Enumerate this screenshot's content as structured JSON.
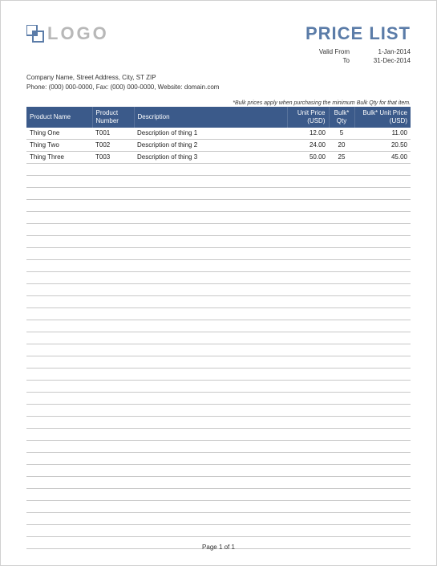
{
  "logo": {
    "text": "LOGO",
    "icon_color": "#5b7ca8",
    "text_color": "#b8b8b8"
  },
  "title": {
    "text": "PRICE LIST",
    "color": "#5b7ca8"
  },
  "validity": {
    "from_label": "Valid From",
    "from_value": "1-Jan-2014",
    "to_label": "To",
    "to_value": "31-Dec-2014"
  },
  "company": {
    "line1": "Company Name, Street Address, City, ST  ZIP",
    "line2": "Phone: (000) 000-0000, Fax: (000) 000-0000, Website: domain.com"
  },
  "footnote": "*Bulk prices apply when purchasing the minimum Bulk Qty for that item.",
  "table": {
    "header_bg": "#3b5a8a",
    "header_fg": "#ffffff",
    "border_color": "#c8c8c8",
    "columns": [
      {
        "label": "Product Name",
        "align": "left",
        "key": "name"
      },
      {
        "label": "Product Number",
        "align": "left",
        "key": "pnum"
      },
      {
        "label": "Description",
        "align": "left",
        "key": "desc"
      },
      {
        "label": "Unit Price (USD)",
        "align": "right",
        "key": "uprice"
      },
      {
        "label": "Bulk* Qty",
        "align": "center",
        "key": "bqty"
      },
      {
        "label": "Bulk* Unit Price (USD)",
        "align": "right",
        "key": "bprice"
      }
    ],
    "rows": [
      {
        "name": "Thing One",
        "pnum": "T001",
        "desc": "Description of thing 1",
        "uprice": "12.00",
        "bqty": "5",
        "bprice": "11.00"
      },
      {
        "name": "Thing Two",
        "pnum": "T002",
        "desc": "Description of thing 2",
        "uprice": "24.00",
        "bqty": "20",
        "bprice": "20.50"
      },
      {
        "name": "Thing Three",
        "pnum": "T003",
        "desc": "Description of thing 3",
        "uprice": "50.00",
        "bqty": "25",
        "bprice": "45.00"
      }
    ],
    "empty_row_count": 32
  },
  "footer": {
    "text": "Page 1 of 1"
  }
}
